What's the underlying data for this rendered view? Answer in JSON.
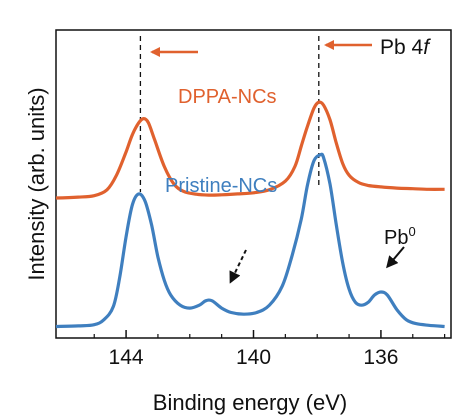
{
  "chart_data": {
    "type": "line",
    "xlabel": "Binding energy (eV)",
    "ylabel": "Intensity (arb. units)",
    "xlim": [
      146.2,
      133.8
    ],
    "x_reversed": true,
    "ylim": [
      0,
      1
    ],
    "y_ticks_shown": false,
    "x_ticks": [
      144,
      140,
      136
    ],
    "x_tick_labels": [
      "144",
      "140",
      "136"
    ],
    "grid": false,
    "series": [
      {
        "name": "DPPA-NCs",
        "color": "#e0612e",
        "x": [
          146.2,
          145.5,
          145.0,
          144.6,
          144.3,
          144.0,
          143.8,
          143.6,
          143.45,
          143.3,
          143.1,
          142.8,
          142.5,
          142.2,
          141.8,
          141.4,
          141.0,
          140.5,
          140.0,
          139.5,
          139.0,
          138.7,
          138.5,
          138.3,
          138.1,
          137.95,
          137.8,
          137.6,
          137.4,
          137.2,
          137.0,
          136.7,
          136.4,
          136.0,
          135.5,
          135.0,
          134.5,
          134.0
        ],
        "y": [
          0.452,
          0.455,
          0.46,
          0.48,
          0.53,
          0.61,
          0.67,
          0.71,
          0.724,
          0.71,
          0.65,
          0.56,
          0.5,
          0.475,
          0.465,
          0.462,
          0.463,
          0.466,
          0.47,
          0.48,
          0.51,
          0.56,
          0.63,
          0.7,
          0.76,
          0.78,
          0.77,
          0.72,
          0.64,
          0.57,
          0.53,
          0.505,
          0.495,
          0.49,
          0.486,
          0.484,
          0.482,
          0.482
        ]
      },
      {
        "name": "Pristine-NCs",
        "color": "#3f7fbf",
        "x": [
          146.2,
          145.5,
          145.0,
          144.7,
          144.4,
          144.2,
          144.0,
          143.8,
          143.6,
          143.4,
          143.2,
          143.0,
          142.8,
          142.6,
          142.3,
          142.0,
          141.7,
          141.5,
          141.3,
          141.0,
          140.7,
          140.3,
          139.9,
          139.5,
          139.1,
          138.8,
          138.5,
          138.3,
          138.1,
          137.9,
          137.8,
          137.6,
          137.4,
          137.2,
          137.0,
          136.8,
          136.6,
          136.4,
          136.2,
          136.0,
          135.8,
          135.5,
          135.2,
          134.9,
          134.5,
          134.0
        ],
        "y": [
          0.012,
          0.014,
          0.018,
          0.035,
          0.08,
          0.18,
          0.32,
          0.43,
          0.466,
          0.44,
          0.36,
          0.25,
          0.17,
          0.12,
          0.085,
          0.075,
          0.085,
          0.1,
          0.1,
          0.075,
          0.06,
          0.054,
          0.06,
          0.085,
          0.15,
          0.25,
          0.38,
          0.5,
          0.58,
          0.6,
          0.59,
          0.5,
          0.36,
          0.23,
          0.14,
          0.095,
          0.085,
          0.095,
          0.12,
          0.13,
          0.12,
          0.07,
          0.035,
          0.022,
          0.016,
          0.012
        ]
      }
    ],
    "annotations": {
      "pristine_label": "Pristine-NCs",
      "dppa_label": "DPPA-NCs",
      "pb4f_label": "Pb 4",
      "pb4f_italic": "f",
      "pb0_label": "Pb",
      "pb0_superscript": "0",
      "dashed_lines_x": [
        143.55,
        137.95
      ],
      "shift_arrows": "orange arrows pointing to higher binding energy",
      "pb0_arrows": "dashed black arrows at 139.1 eV and 136.2 eV shoulders"
    }
  }
}
